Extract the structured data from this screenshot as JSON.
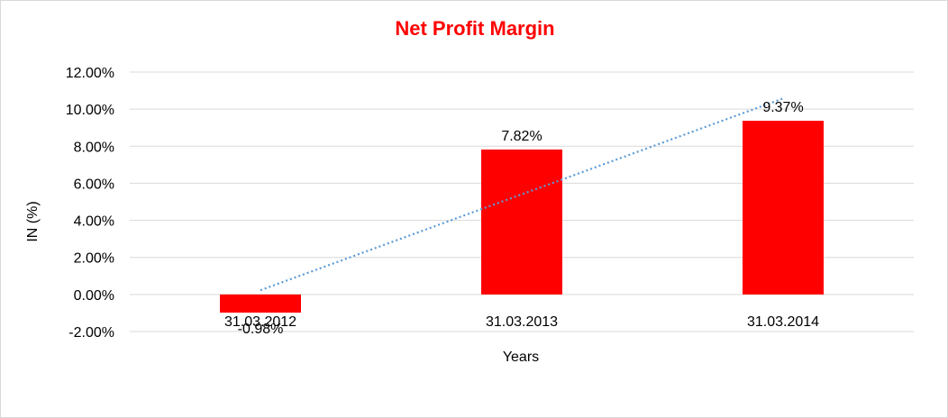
{
  "chart_data": {
    "type": "bar",
    "title": "Net Profit Margin",
    "title_color": "#ff0000",
    "bar_color": "#ff0000",
    "trendline_color": "#5b9bd5",
    "trendline": "linear, dotted",
    "xlabel": "Years",
    "ylabel": "IN (%)",
    "categories": [
      "31.03.2012",
      "31.03.2013",
      "31.03.2014"
    ],
    "values": [
      -0.98,
      7.82,
      9.37
    ],
    "data_labels": [
      "-0.98%",
      "7.82%",
      "9.37%"
    ],
    "ylim": [
      -2,
      12
    ],
    "yticks": [
      -2,
      0,
      2,
      4,
      6,
      8,
      10,
      12
    ],
    "ytick_labels": [
      "-2.00%",
      "0.00%",
      "2.00%",
      "4.00%",
      "6.00%",
      "8.00%",
      "10.00%",
      "12.00%"
    ],
    "grid": true,
    "legend": "none"
  }
}
